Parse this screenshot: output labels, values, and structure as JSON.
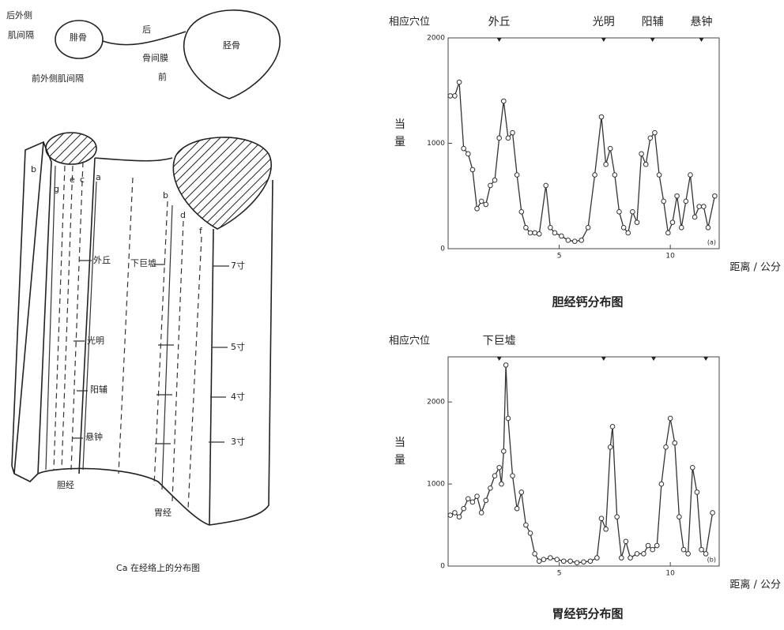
{
  "diagram": {
    "cross_section": {
      "posterior_septum": [
        "后外侧",
        "肌间隔"
      ],
      "fibula": "腓骨",
      "posterior": "后",
      "tibia": "胫骨",
      "membrane": "骨间膜",
      "anterior": "前",
      "anterior_septum": "前外侧肌间隔"
    },
    "lines": [
      "b",
      "g",
      "e",
      "c",
      "a",
      "b",
      "d",
      "f"
    ],
    "points": [
      "外丘",
      "下巨墟",
      "光明",
      "阳辅",
      "悬钟"
    ],
    "measures": [
      "7寸",
      "5寸",
      "4寸",
      "3寸"
    ],
    "meridians": [
      "胆经",
      "胃经"
    ],
    "caption": "Ca 在经络上的分布图"
  },
  "chart_data": [
    {
      "type": "line",
      "title": "胆经钙分布图",
      "y_label": "当量",
      "x_label": "距离 / 公分",
      "panel": "(a)",
      "marker_heading": "相应穴位",
      "markers": [
        {
          "x": 2.3,
          "label": "外丘"
        },
        {
          "x": 7.0,
          "label": "光明"
        },
        {
          "x": 9.2,
          "label": "阳辅"
        },
        {
          "x": 11.4,
          "label": "悬钟"
        }
      ],
      "xlim": [
        0,
        12.2
      ],
      "ylim": [
        0,
        2000
      ],
      "xticks": [
        5,
        10
      ],
      "yticks": [
        0,
        1000,
        2000
      ],
      "x": [
        0.1,
        0.3,
        0.5,
        0.7,
        0.9,
        1.1,
        1.3,
        1.5,
        1.7,
        1.9,
        2.1,
        2.3,
        2.5,
        2.7,
        2.9,
        3.1,
        3.3,
        3.5,
        3.7,
        3.9,
        4.1,
        4.4,
        4.6,
        4.8,
        5.1,
        5.4,
        5.7,
        6.0,
        6.3,
        6.6,
        6.9,
        7.1,
        7.3,
        7.5,
        7.7,
        7.9,
        8.1,
        8.3,
        8.5,
        8.7,
        8.9,
        9.1,
        9.3,
        9.5,
        9.7,
        9.9,
        10.1,
        10.3,
        10.5,
        10.7,
        10.9,
        11.1,
        11.3,
        11.5,
        11.7,
        12.0
      ],
      "series": [
        {
          "color": "#333333",
          "values": [
            1450,
            1450,
            1580,
            950,
            900,
            750,
            380,
            450,
            420,
            600,
            650,
            1050,
            1400,
            1050,
            1100,
            700,
            350,
            200,
            150,
            150,
            140,
            600,
            200,
            150,
            120,
            80,
            70,
            80,
            200,
            700,
            1250,
            800,
            950,
            700,
            350,
            200,
            150,
            350,
            250,
            900,
            800,
            1050,
            1100,
            700,
            450,
            150,
            250,
            500,
            200,
            450,
            700,
            300,
            400,
            400,
            200,
            500
          ]
        }
      ]
    },
    {
      "type": "line",
      "title": "胃经钙分布图",
      "y_label": "当量",
      "x_label": "距离 / 公分",
      "panel": "(b)",
      "marker_heading": "相应穴位",
      "markers": [
        {
          "x": 2.3,
          "label": "下巨墟"
        },
        {
          "x": 7.0
        },
        {
          "x": 9.25
        },
        {
          "x": 11.6
        }
      ],
      "xlim": [
        0,
        12.2
      ],
      "ylim": [
        0,
        2550
      ],
      "xticks": [
        5,
        10
      ],
      "yticks": [
        0,
        1000,
        2000
      ],
      "x": [
        0.1,
        0.3,
        0.5,
        0.7,
        0.9,
        1.1,
        1.3,
        1.5,
        1.7,
        1.9,
        2.1,
        2.3,
        2.4,
        2.5,
        2.6,
        2.7,
        2.9,
        3.1,
        3.3,
        3.5,
        3.7,
        3.9,
        4.1,
        4.3,
        4.6,
        4.9,
        5.2,
        5.5,
        5.8,
        6.1,
        6.4,
        6.7,
        6.9,
        7.1,
        7.3,
        7.4,
        7.6,
        7.8,
        8.0,
        8.2,
        8.5,
        8.8,
        9.0,
        9.2,
        9.4,
        9.6,
        9.8,
        10.0,
        10.2,
        10.4,
        10.6,
        10.8,
        11.0,
        11.2,
        11.4,
        11.6,
        11.9
      ],
      "series": [
        {
          "color": "#333333",
          "values": [
            620,
            650,
            600,
            700,
            820,
            780,
            850,
            650,
            800,
            950,
            1100,
            1200,
            1000,
            1400,
            2450,
            1800,
            1100,
            700,
            900,
            500,
            400,
            150,
            60,
            80,
            100,
            80,
            60,
            60,
            40,
            50,
            60,
            100,
            580,
            450,
            1450,
            1700,
            600,
            100,
            300,
            100,
            150,
            150,
            250,
            200,
            250,
            1000,
            1450,
            1800,
            1500,
            600,
            200,
            150,
            1200,
            900,
            200,
            150,
            650
          ]
        }
      ]
    }
  ]
}
